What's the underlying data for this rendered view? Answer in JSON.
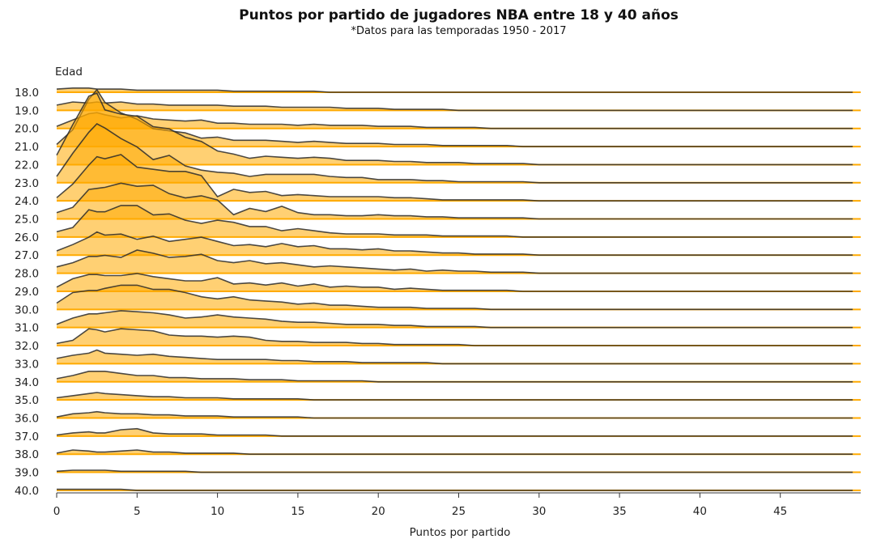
{
  "chart_data": {
    "type": "area",
    "style": "ridgeline",
    "title": "Puntos por partido de jugadores NBA entre 18 y 40 años",
    "subtitle": "*Datos para las temporadas 1950 - 2017",
    "xlabel": "Puntos por partido",
    "ylabel": "Edad",
    "xlim": [
      0,
      50
    ],
    "xticks": [
      0,
      5,
      10,
      15,
      20,
      25,
      30,
      35,
      40,
      45
    ],
    "fill_color": "#ffaa00",
    "line_color": "#2b2b2b",
    "grid": false,
    "legend": "none",
    "x": [
      0,
      1,
      2,
      2.5,
      3,
      4,
      5,
      6,
      7,
      8,
      9,
      10,
      11,
      12,
      13,
      14,
      15,
      16,
      17,
      18,
      19,
      20,
      21,
      22,
      23,
      24,
      25,
      26,
      27,
      28,
      29,
      30,
      32,
      35,
      40,
      45,
      49.5
    ],
    "series": [
      {
        "name": "18.0",
        "values": [
          0.3,
          0.4,
          0.4,
          0.3,
          0.3,
          0.3,
          0.2,
          0.2,
          0.2,
          0.2,
          0.2,
          0.2,
          0.1,
          0.1,
          0.1,
          0.1,
          0.1,
          0.1,
          0,
          0,
          0,
          0,
          0,
          0,
          0,
          0,
          0,
          0,
          0,
          0,
          0,
          0,
          0,
          0,
          0,
          0,
          0
        ]
      },
      {
        "name": "19.0",
        "values": [
          0.5,
          0.8,
          0.7,
          0.8,
          0.7,
          0.8,
          0.6,
          0.6,
          0.5,
          0.5,
          0.5,
          0.5,
          0.4,
          0.4,
          0.4,
          0.3,
          0.3,
          0.3,
          0.3,
          0.2,
          0.2,
          0.2,
          0.1,
          0.1,
          0.1,
          0.1,
          0,
          0,
          0,
          0,
          0,
          0,
          0,
          0,
          0,
          0,
          0
        ]
      },
      {
        "name": "20.0",
        "values": [
          0.2,
          0.8,
          1.4,
          1.5,
          1.3,
          1.0,
          1.2,
          0.9,
          0.8,
          0.7,
          0.8,
          0.5,
          0.5,
          0.4,
          0.4,
          0.4,
          0.3,
          0.4,
          0.3,
          0.3,
          0.3,
          0.2,
          0.2,
          0.2,
          0.1,
          0.1,
          0.1,
          0.1,
          0,
          0,
          0,
          0,
          0,
          0,
          0,
          0,
          0
        ]
      },
      {
        "name": "21.0",
        "values": [
          0.2,
          1.6,
          4.5,
          5.4,
          4.2,
          3.2,
          2.6,
          1.7,
          1.5,
          1.3,
          0.8,
          0.9,
          0.6,
          0.6,
          0.6,
          0.5,
          0.4,
          0.5,
          0.4,
          0.3,
          0.3,
          0.3,
          0.2,
          0.2,
          0.2,
          0.1,
          0.1,
          0.1,
          0.1,
          0.1,
          0,
          0,
          0,
          0,
          0,
          0,
          0
        ]
      },
      {
        "name": "22.0",
        "values": [
          0.9,
          3.8,
          6.5,
          6.8,
          5.2,
          4.8,
          4.6,
          3.6,
          3.4,
          2.6,
          2.2,
          1.3,
          1.0,
          0.6,
          0.8,
          0.7,
          0.6,
          0.7,
          0.6,
          0.4,
          0.4,
          0.4,
          0.3,
          0.3,
          0.2,
          0.2,
          0.2,
          0.1,
          0.1,
          0.1,
          0.1,
          0,
          0,
          0,
          0,
          0,
          0
        ]
      },
      {
        "name": "23.0",
        "values": [
          0.6,
          2.8,
          4.8,
          5.6,
          5.2,
          4.2,
          3.4,
          2.2,
          2.6,
          1.6,
          1.2,
          1.0,
          0.9,
          0.6,
          0.8,
          0.8,
          0.8,
          0.8,
          0.6,
          0.5,
          0.5,
          0.3,
          0.3,
          0.3,
          0.2,
          0.2,
          0.1,
          0.1,
          0.1,
          0.1,
          0.1,
          0,
          0,
          0,
          0,
          0,
          0
        ]
      },
      {
        "name": "24.0",
        "values": [
          0.3,
          1.6,
          3.4,
          4.2,
          4.0,
          4.4,
          3.2,
          3.0,
          2.8,
          2.8,
          2.4,
          0.4,
          1.1,
          0.8,
          0.9,
          0.5,
          0.6,
          0.5,
          0.4,
          0.4,
          0.4,
          0.4,
          0.3,
          0.3,
          0.2,
          0.1,
          0.1,
          0.1,
          0.1,
          0.1,
          0.1,
          0,
          0,
          0,
          0,
          0,
          0
        ]
      },
      {
        "name": "25.0",
        "values": [
          0.6,
          1.1,
          2.8,
          2.9,
          3.0,
          3.4,
          3.1,
          3.2,
          2.4,
          2.0,
          2.2,
          1.8,
          0.4,
          1.0,
          0.7,
          1.2,
          0.6,
          0.4,
          0.4,
          0.3,
          0.3,
          0.4,
          0.3,
          0.3,
          0.2,
          0.2,
          0.1,
          0.1,
          0.1,
          0.1,
          0.1,
          0,
          0,
          0,
          0,
          0,
          0
        ]
      },
      {
        "name": "26.0",
        "values": [
          0.5,
          0.9,
          2.6,
          2.4,
          2.4,
          3.0,
          3.0,
          2.1,
          2.2,
          1.6,
          1.3,
          1.6,
          1.4,
          1.0,
          1.0,
          0.6,
          0.8,
          0.6,
          0.4,
          0.3,
          0.3,
          0.3,
          0.2,
          0.2,
          0.2,
          0.1,
          0.1,
          0.1,
          0.1,
          0.1,
          0,
          0,
          0,
          0,
          0,
          0,
          0
        ]
      },
      {
        "name": "27.0",
        "values": [
          0.4,
          1.0,
          1.7,
          2.2,
          1.9,
          2.0,
          1.5,
          1.8,
          1.3,
          1.5,
          1.7,
          1.3,
          0.9,
          1.0,
          0.8,
          1.1,
          0.8,
          0.9,
          0.6,
          0.6,
          0.5,
          0.6,
          0.4,
          0.4,
          0.3,
          0.2,
          0.2,
          0.1,
          0.1,
          0.1,
          0.1,
          0,
          0,
          0,
          0,
          0,
          0
        ]
      },
      {
        "name": "28.0",
        "values": [
          0.6,
          1.0,
          1.6,
          1.6,
          1.7,
          1.5,
          2.2,
          1.9,
          1.5,
          1.6,
          1.8,
          1.2,
          1.0,
          1.2,
          0.9,
          1.0,
          0.8,
          0.6,
          0.7,
          0.6,
          0.5,
          0.4,
          0.3,
          0.4,
          0.2,
          0.3,
          0.2,
          0.2,
          0.1,
          0.1,
          0.1,
          0,
          0,
          0,
          0,
          0,
          0
        ]
      },
      {
        "name": "29.0",
        "values": [
          0.4,
          1.2,
          1.6,
          1.6,
          1.5,
          1.5,
          1.7,
          1.4,
          1.2,
          1.0,
          1.0,
          1.3,
          0.7,
          0.8,
          0.6,
          0.8,
          0.5,
          0.7,
          0.4,
          0.5,
          0.4,
          0.4,
          0.2,
          0.3,
          0.2,
          0.1,
          0.1,
          0.1,
          0.1,
          0.1,
          0,
          0,
          0,
          0,
          0,
          0,
          0
        ]
      },
      {
        "name": "30.0",
        "values": [
          0.6,
          1.6,
          1.8,
          1.8,
          2.0,
          2.3,
          2.3,
          1.9,
          1.9,
          1.6,
          1.2,
          1.0,
          1.2,
          0.9,
          0.8,
          0.7,
          0.5,
          0.6,
          0.4,
          0.4,
          0.3,
          0.2,
          0.2,
          0.2,
          0.1,
          0.1,
          0.1,
          0.1,
          0,
          0,
          0,
          0,
          0,
          0,
          0,
          0,
          0
        ]
      },
      {
        "name": "31.0",
        "values": [
          0.3,
          0.9,
          1.3,
          1.3,
          1.4,
          1.6,
          1.5,
          1.4,
          1.2,
          0.9,
          1.0,
          1.2,
          1.0,
          0.9,
          0.8,
          0.6,
          0.5,
          0.5,
          0.4,
          0.3,
          0.3,
          0.3,
          0.2,
          0.2,
          0.1,
          0.1,
          0.1,
          0.1,
          0,
          0,
          0,
          0,
          0,
          0,
          0,
          0,
          0
        ]
      },
      {
        "name": "32.0",
        "values": [
          0.2,
          0.5,
          1.6,
          1.5,
          1.3,
          1.6,
          1.5,
          1.4,
          1.0,
          0.9,
          0.9,
          0.8,
          0.9,
          0.8,
          0.5,
          0.4,
          0.4,
          0.3,
          0.3,
          0.3,
          0.2,
          0.2,
          0.1,
          0.1,
          0.1,
          0.1,
          0.1,
          0,
          0,
          0,
          0,
          0,
          0,
          0,
          0,
          0,
          0
        ]
      },
      {
        "name": "33.0",
        "values": [
          0.5,
          0.8,
          1.0,
          1.3,
          1.0,
          0.9,
          0.8,
          0.9,
          0.7,
          0.6,
          0.5,
          0.4,
          0.4,
          0.4,
          0.4,
          0.3,
          0.3,
          0.2,
          0.2,
          0.2,
          0.1,
          0.1,
          0.1,
          0.1,
          0.1,
          0,
          0,
          0,
          0,
          0,
          0,
          0,
          0,
          0,
          0,
          0,
          0
        ]
      },
      {
        "name": "34.0",
        "values": [
          0.3,
          0.6,
          1.0,
          1.0,
          1.0,
          0.8,
          0.6,
          0.6,
          0.4,
          0.4,
          0.3,
          0.3,
          0.3,
          0.2,
          0.2,
          0.2,
          0.1,
          0.1,
          0.1,
          0.1,
          0.1,
          0,
          0,
          0,
          0,
          0,
          0,
          0,
          0,
          0,
          0,
          0,
          0,
          0,
          0,
          0,
          0
        ]
      },
      {
        "name": "35.0",
        "values": [
          0.2,
          0.4,
          0.6,
          0.7,
          0.6,
          0.5,
          0.4,
          0.3,
          0.3,
          0.2,
          0.2,
          0.2,
          0.1,
          0.1,
          0.1,
          0.1,
          0.1,
          0,
          0,
          0,
          0,
          0,
          0,
          0,
          0,
          0,
          0,
          0,
          0,
          0,
          0,
          0,
          0,
          0,
          0,
          0,
          0
        ]
      },
      {
        "name": "36.0",
        "values": [
          0.1,
          0.4,
          0.5,
          0.6,
          0.5,
          0.4,
          0.4,
          0.3,
          0.3,
          0.2,
          0.2,
          0.2,
          0.1,
          0.1,
          0.1,
          0.1,
          0.1,
          0,
          0,
          0,
          0,
          0,
          0,
          0,
          0,
          0,
          0,
          0,
          0,
          0,
          0,
          0,
          0,
          0,
          0,
          0,
          0
        ]
      },
      {
        "name": "37.0",
        "values": [
          0.1,
          0.3,
          0.4,
          0.3,
          0.3,
          0.6,
          0.7,
          0.3,
          0.2,
          0.2,
          0.2,
          0.1,
          0.1,
          0.1,
          0.1,
          0,
          0,
          0,
          0,
          0,
          0,
          0,
          0,
          0,
          0,
          0,
          0,
          0,
          0,
          0,
          0,
          0,
          0,
          0,
          0,
          0,
          0
        ]
      },
      {
        "name": "38.0",
        "values": [
          0.1,
          0.4,
          0.3,
          0.2,
          0.2,
          0.3,
          0.4,
          0.2,
          0.2,
          0.1,
          0.1,
          0.1,
          0.1,
          0,
          0,
          0,
          0,
          0,
          0,
          0,
          0,
          0,
          0,
          0,
          0,
          0,
          0,
          0,
          0,
          0,
          0,
          0,
          0,
          0,
          0,
          0,
          0
        ]
      },
      {
        "name": "39.0",
        "values": [
          0.1,
          0.2,
          0.2,
          0.2,
          0.2,
          0.1,
          0.1,
          0.1,
          0.1,
          0.1,
          0,
          0,
          0,
          0,
          0,
          0,
          0,
          0,
          0,
          0,
          0,
          0,
          0,
          0,
          0,
          0,
          0,
          0,
          0,
          0,
          0,
          0,
          0,
          0,
          0,
          0,
          0
        ]
      },
      {
        "name": "40.0",
        "values": [
          0.1,
          0.1,
          0.1,
          0.1,
          0.1,
          0.1,
          0,
          0,
          0,
          0,
          0,
          0,
          0,
          0,
          0,
          0,
          0,
          0,
          0,
          0,
          0,
          0,
          0,
          0,
          0,
          0,
          0,
          0,
          0,
          0,
          0,
          0,
          0,
          0,
          0,
          0,
          0
        ]
      }
    ]
  }
}
